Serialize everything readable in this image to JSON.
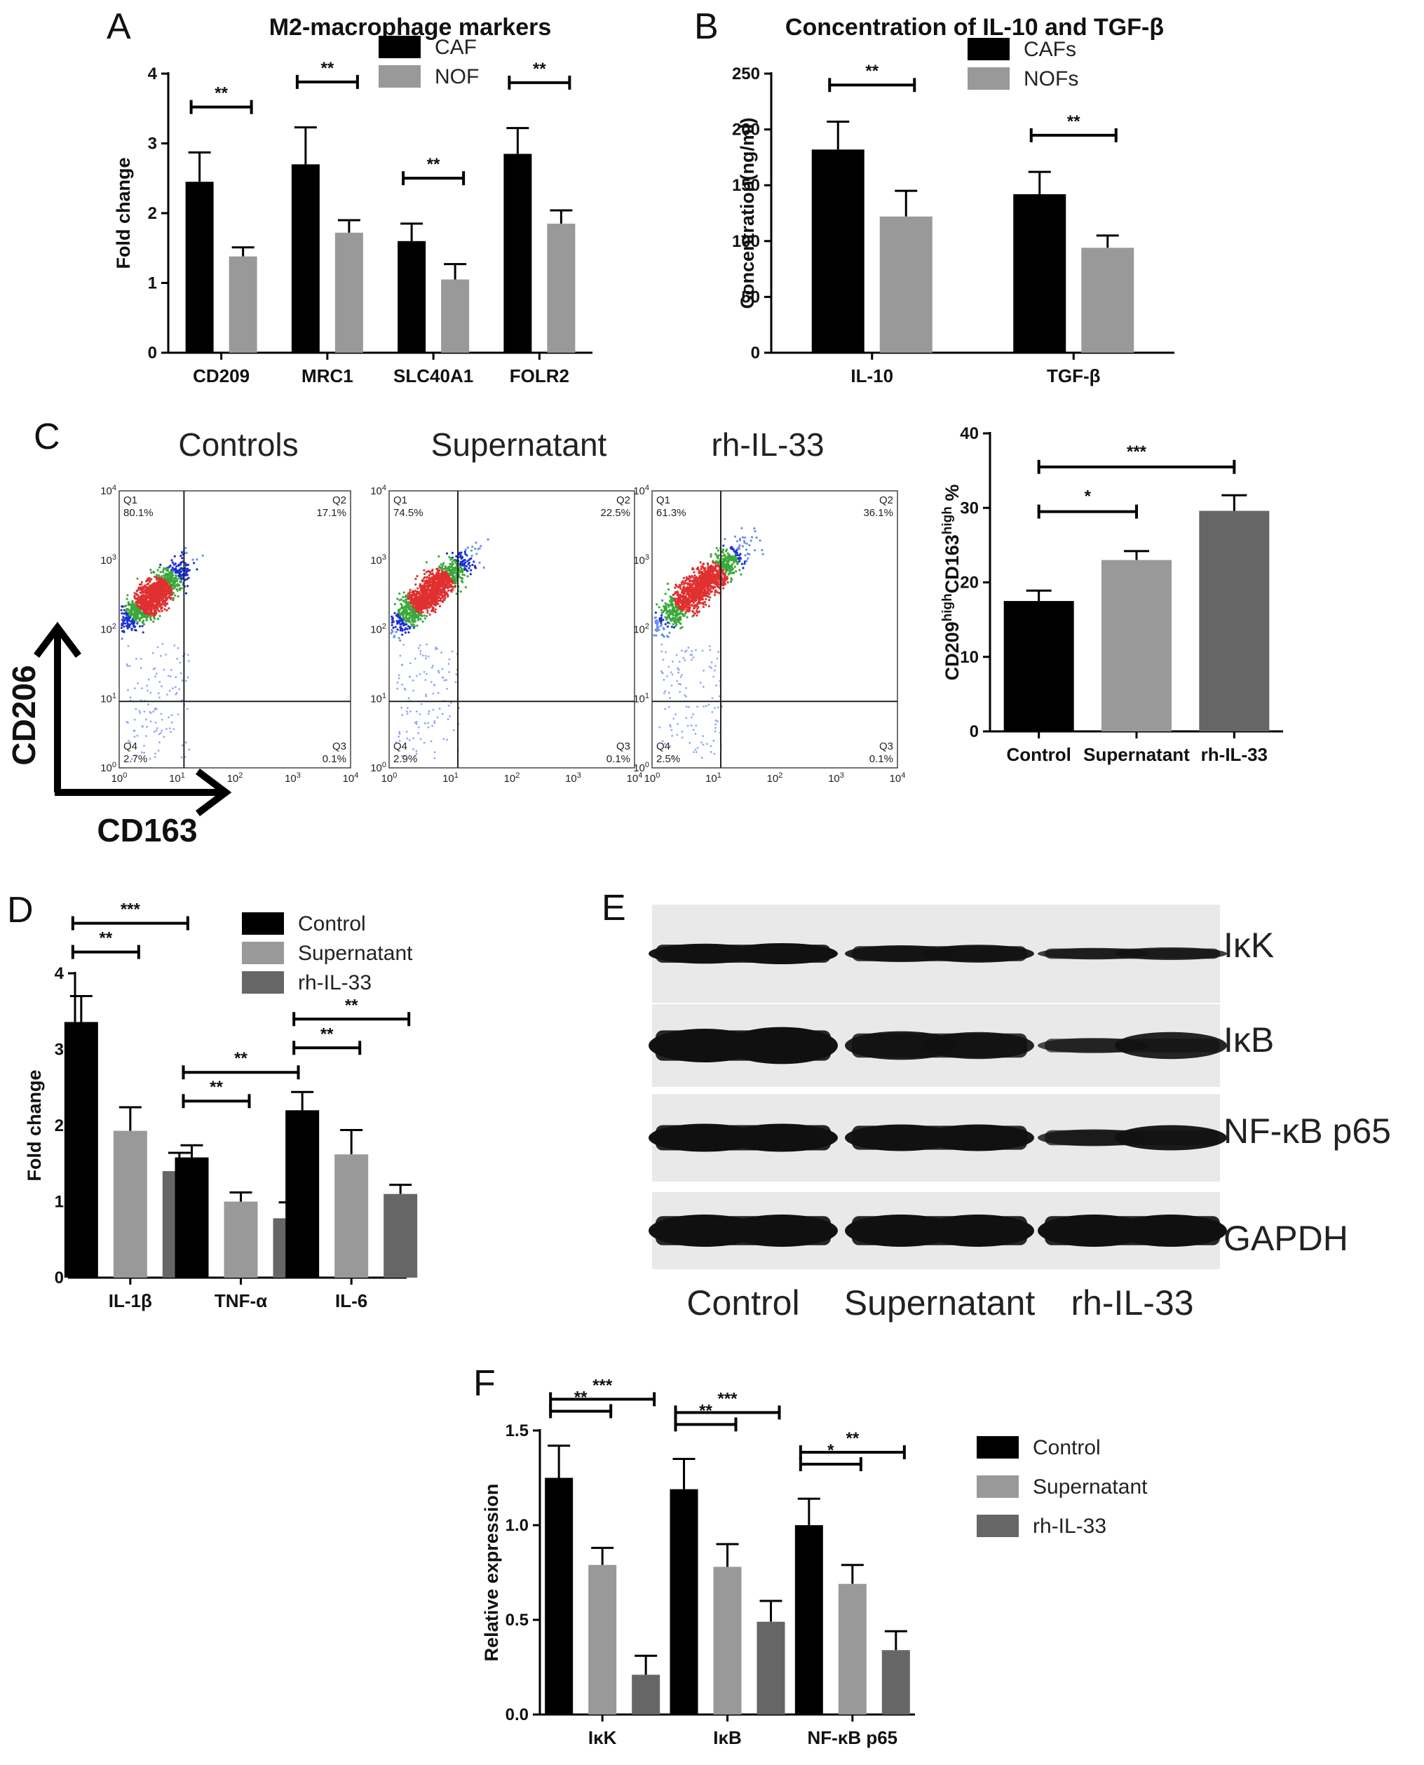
{
  "panels": {
    "A": "A",
    "B": "B",
    "C": "C",
    "D": "D",
    "E": "E",
    "F": "F"
  },
  "flow": {
    "headers": [
      "Controls",
      "Supernatant",
      "rh-IL-33"
    ],
    "quadrants": [
      {
        "q1": "Q1",
        "q1v": "80.1%",
        "q2": "Q2",
        "q2v": "17.1%",
        "q3": "Q3",
        "q3v": "0.1%",
        "q4": "Q4",
        "q4v": "2.7%"
      },
      {
        "q1": "Q1",
        "q1v": "74.5%",
        "q2": "Q2",
        "q2v": "22.5%",
        "q3": "Q3",
        "q3v": "0.1%",
        "q4": "Q4",
        "q4v": "2.9%"
      },
      {
        "q1": "Q1",
        "q1v": "61.3%",
        "q2": "Q2",
        "q2v": "36.1%",
        "q3": "Q3",
        "q3v": "0.1%",
        "q4": "Q4",
        "q4v": "2.5%"
      }
    ],
    "y_axis": "CD206",
    "x_axis": "CD163",
    "ticks": [
      "10",
      "10",
      "10",
      "10",
      "10"
    ],
    "tick_exps": [
      "0",
      "1",
      "2",
      "3",
      "4"
    ]
  },
  "western": {
    "proteins": [
      "IκK",
      "IκB",
      "NF-κB p65",
      "GAPDH"
    ],
    "lanes": [
      "Control",
      "Supernatant",
      "rh-IL-33"
    ]
  },
  "chart_data": [
    {
      "id": "A",
      "type": "bar",
      "title": "M2-macrophage markers",
      "ylabel": "Fold change",
      "xlabel": "",
      "categories": [
        "CD209",
        "MRC1",
        "SLC40A1",
        "FOLR2"
      ],
      "series": [
        {
          "name": "CAF",
          "color": "#000000",
          "values": [
            2.45,
            2.7,
            1.6,
            2.85
          ],
          "errors": [
            0.42,
            0.53,
            0.25,
            0.37
          ]
        },
        {
          "name": "NOF",
          "color": "#999999",
          "values": [
            1.38,
            1.72,
            1.05,
            1.85
          ],
          "errors": [
            0.13,
            0.18,
            0.22,
            0.19
          ]
        }
      ],
      "ylim": [
        0,
        4
      ],
      "yticks": [
        0,
        1,
        2,
        3,
        4
      ],
      "legend": "top-right",
      "significance": [
        {
          "category": 0,
          "pair": [
            0,
            1
          ],
          "label": "**"
        },
        {
          "category": 1,
          "pair": [
            0,
            1
          ],
          "label": "**"
        },
        {
          "category": 2,
          "pair": [
            0,
            1
          ],
          "label": "**"
        },
        {
          "category": 3,
          "pair": [
            0,
            1
          ],
          "label": "**"
        }
      ]
    },
    {
      "id": "B",
      "type": "bar",
      "title": "Concentration of IL-10 and TGF-β",
      "ylabel": "Concentration(ng/ml)",
      "xlabel": "",
      "categories": [
        "IL-10",
        "TGF-β"
      ],
      "series": [
        {
          "name": "CAFs",
          "color": "#000000",
          "values": [
            182,
            142
          ],
          "errors": [
            25,
            20
          ]
        },
        {
          "name": "NOFs",
          "color": "#999999",
          "values": [
            122,
            94
          ],
          "errors": [
            23,
            11
          ]
        }
      ],
      "ylim": [
        0,
        250
      ],
      "yticks": [
        0,
        50,
        100,
        150,
        200,
        250
      ],
      "legend": "top-right",
      "significance": [
        {
          "category": 0,
          "pair": [
            0,
            1
          ],
          "label": "**"
        },
        {
          "category": 1,
          "pair": [
            0,
            1
          ],
          "label": "**"
        }
      ]
    },
    {
      "id": "C",
      "type": "bar",
      "title": "",
      "ylabel": "CD209highCD163high %",
      "ylabel_parts": [
        "CD209",
        "high",
        "CD163",
        "high",
        " %"
      ],
      "xlabel": "",
      "categories": [
        "Control",
        "Supernatant",
        "rh-IL-33"
      ],
      "series": [
        {
          "name": "",
          "colors": [
            "#000000",
            "#999999",
            "#666666"
          ],
          "values": [
            17.5,
            23,
            29.6
          ],
          "errors": [
            1.4,
            1.2,
            2.1
          ]
        }
      ],
      "ylim": [
        0,
        40
      ],
      "yticks": [
        0,
        10,
        20,
        30,
        40
      ],
      "significance": [
        {
          "pair": [
            0,
            1
          ],
          "label": "*"
        },
        {
          "pair": [
            0,
            2
          ],
          "label": "***"
        }
      ]
    },
    {
      "id": "D",
      "type": "bar",
      "title": "",
      "ylabel": "Fold change",
      "xlabel": "",
      "categories": [
        "IL-1β",
        "TNF-α",
        "IL-6"
      ],
      "series": [
        {
          "name": "Control",
          "color": "#000000",
          "values": [
            3.36,
            1.58,
            2.2
          ],
          "errors": [
            0.34,
            0.16,
            0.24
          ]
        },
        {
          "name": "Supernatant",
          "color": "#999999",
          "values": [
            1.93,
            1.0,
            1.62
          ],
          "errors": [
            0.31,
            0.12,
            0.32
          ]
        },
        {
          "name": "rh-IL-33",
          "color": "#666666",
          "values": [
            1.4,
            0.78,
            1.1
          ],
          "errors": [
            0.24,
            0.21,
            0.12
          ]
        }
      ],
      "ylim": [
        0,
        4
      ],
      "yticks": [
        0,
        1,
        2,
        3,
        4
      ],
      "legend": "top-right",
      "significance": [
        {
          "category": 0,
          "pair": [
            0,
            1
          ],
          "label": "**"
        },
        {
          "category": 0,
          "pair": [
            0,
            2
          ],
          "label": "***"
        },
        {
          "category": 1,
          "pair": [
            0,
            1
          ],
          "label": "**"
        },
        {
          "category": 1,
          "pair": [
            0,
            2
          ],
          "label": "**"
        },
        {
          "category": 2,
          "pair": [
            0,
            1
          ],
          "label": "**"
        },
        {
          "category": 2,
          "pair": [
            0,
            2
          ],
          "label": "**"
        }
      ]
    },
    {
      "id": "F",
      "type": "bar",
      "title": "",
      "ylabel": "Relative expression",
      "xlabel": "",
      "categories": [
        "IκK",
        "IκB",
        "NF-κB p65"
      ],
      "series": [
        {
          "name": "Control",
          "color": "#000000",
          "values": [
            1.25,
            1.19,
            1.0
          ],
          "errors": [
            0.17,
            0.16,
            0.14
          ]
        },
        {
          "name": "Supernatant",
          "color": "#999999",
          "values": [
            0.79,
            0.78,
            0.69
          ],
          "errors": [
            0.09,
            0.12,
            0.1
          ]
        },
        {
          "name": "rh-IL-33",
          "color": "#666666",
          "values": [
            0.21,
            0.49,
            0.34
          ],
          "errors": [
            0.1,
            0.11,
            0.1
          ]
        }
      ],
      "ylim": [
        0,
        1.5
      ],
      "yticks": [
        "0.0",
        "0.5",
        "1.0",
        "1.5"
      ],
      "legend": "right",
      "significance": [
        {
          "category": 0,
          "pair": [
            0,
            1
          ],
          "label": "**"
        },
        {
          "category": 0,
          "pair": [
            0,
            2
          ],
          "label": "***"
        },
        {
          "category": 1,
          "pair": [
            0,
            1
          ],
          "label": "**"
        },
        {
          "category": 1,
          "pair": [
            0,
            2
          ],
          "label": "***"
        },
        {
          "category": 2,
          "pair": [
            0,
            1
          ],
          "label": "*"
        },
        {
          "category": 2,
          "pair": [
            0,
            2
          ],
          "label": "**"
        }
      ]
    }
  ]
}
